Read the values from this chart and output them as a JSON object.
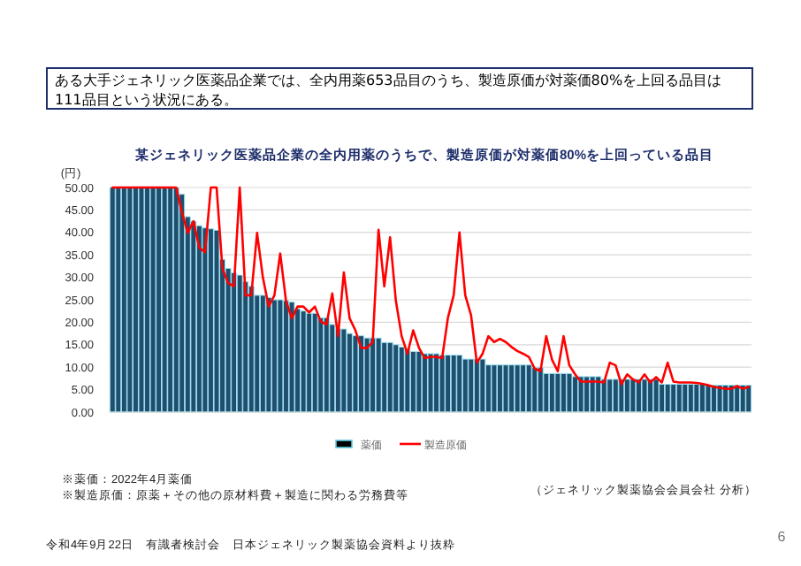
{
  "chart_data": {
    "type": "bar",
    "title": "某ジェネリック医薬品企業の全内用薬のうちで、製造原価が対薬価80%を上回っている品目",
    "ylabel": "(円)",
    "categories": [
      null,
      null,
      null,
      null,
      null,
      null,
      null,
      null,
      null,
      null,
      null,
      null,
      null,
      null,
      null,
      null,
      null,
      null,
      null,
      null,
      null,
      null,
      null,
      null,
      null,
      null,
      null,
      null,
      null,
      null,
      null,
      null,
      null,
      null,
      null,
      null,
      null,
      null,
      null,
      null,
      null,
      null,
      null,
      null,
      null,
      null,
      null,
      null,
      null,
      null,
      null,
      null,
      null,
      null,
      null,
      null,
      null,
      null,
      null,
      null,
      null,
      null,
      null,
      null,
      null,
      null,
      null,
      null,
      null,
      null,
      null,
      null,
      null,
      null,
      null,
      null,
      null,
      null,
      null,
      null,
      null,
      null,
      null,
      null,
      null,
      null,
      null,
      null,
      null,
      null,
      null,
      null,
      null,
      null,
      null,
      null,
      null,
      null,
      null,
      null,
      null,
      null,
      null,
      null,
      null,
      null,
      null,
      null,
      null,
      null,
      null
    ],
    "series": [
      {
        "name": "薬価",
        "color": "#1f4e6e",
        "values": [
          50,
          50,
          50,
          50,
          50,
          50,
          50,
          50,
          50,
          50,
          50,
          50,
          48.5,
          43.5,
          42.5,
          41.5,
          41,
          40.8,
          40.5,
          34,
          32,
          31,
          30.5,
          29,
          28,
          26,
          26,
          25.5,
          25,
          25,
          24.8,
          24.5,
          23,
          22.5,
          22,
          22,
          21,
          21,
          19.5,
          18.5,
          18.5,
          17.5,
          17,
          17,
          16.5,
          16.5,
          16.5,
          15.5,
          15.5,
          15,
          14.5,
          14,
          13.5,
          13.5,
          13,
          13,
          13,
          12.7,
          12.7,
          12.7,
          12.7,
          11.8,
          11.8,
          11.8,
          11.8,
          10.5,
          10.5,
          10.5,
          10.5,
          10.5,
          10.5,
          10.5,
          10.5,
          9.9,
          9.9,
          8.6,
          8.6,
          8.6,
          8.6,
          8.6,
          7.9,
          7.9,
          7.9,
          7.9,
          7.9,
          7.3,
          7.3,
          7.3,
          7.3,
          7.3,
          7.3,
          7.3,
          7.3,
          7.3,
          7.3,
          6.2,
          6.2,
          6.2,
          6.2,
          6.2,
          6.2,
          6.2,
          6.2,
          6,
          6,
          6,
          6,
          6,
          6,
          6,
          6
        ]
      },
      {
        "name": "製造原価",
        "type": "line",
        "color": "#ff0000",
        "values": [
          50,
          50,
          50,
          50,
          50,
          50,
          50,
          50,
          50,
          50,
          50,
          50,
          44.5,
          39.9,
          42.5,
          36.6,
          35.6,
          50,
          50,
          32,
          28.7,
          28,
          50,
          26,
          26,
          39.9,
          30,
          23.5,
          26,
          35.3,
          24.8,
          20.9,
          23.5,
          23.5,
          22.2,
          23.5,
          20.2,
          19.5,
          26.4,
          16.9,
          31.1,
          20.9,
          18.2,
          14.3,
          14.3,
          15.6,
          40.6,
          28,
          38.9,
          24.8,
          16.9,
          13,
          18.2,
          14.3,
          12,
          12.3,
          12.3,
          12,
          21,
          26,
          40,
          26,
          21.6,
          11,
          13,
          16.9,
          15.6,
          16.3,
          15.6,
          14.5,
          13.6,
          13,
          12.3,
          9.7,
          9.1,
          16.9,
          11.7,
          9.1,
          16.9,
          10.4,
          8.4,
          6.8,
          6.8,
          6.8,
          6.8,
          6.6,
          11,
          10.4,
          6.2,
          8.4,
          7.3,
          6.6,
          8.4,
          6.6,
          7.8,
          6.6,
          11,
          6.8,
          6.6,
          6.6,
          6.6,
          6.5,
          6.3,
          6,
          5.6,
          5.4,
          5.2,
          5.2,
          5.8,
          5.2,
          5.6
        ]
      }
    ],
    "ylim": [
      0,
      50
    ],
    "yticks": [
      {
        "value": 0,
        "label": "0.00"
      },
      {
        "value": 5,
        "label": "5.00"
      },
      {
        "value": 10,
        "label": "10.00"
      },
      {
        "value": 15,
        "label": "15.00"
      },
      {
        "value": 20,
        "label": "20.00"
      },
      {
        "value": 25,
        "label": "25.00"
      },
      {
        "value": 30,
        "label": "30.00"
      },
      {
        "value": 35,
        "label": "35.00"
      },
      {
        "value": 40,
        "label": "40.00"
      },
      {
        "value": 45,
        "label": "45.00"
      },
      {
        "value": 50,
        "label": "50.00"
      }
    ],
    "grid": "y",
    "legend": "bottom",
    "line_style": "solid",
    "marker": "none",
    "annotations": [
      "ある大手ジェネリック医薬品企業では、全内用薬653品目のうち、製造原価が対薬価80%を上回る品目は111品目という状況にある。",
      "※薬価：2022年4月薬価",
      "※製造原価：原薬＋その他の原材料費＋製造に関わる労務費等",
      "（ジェネリック製薬協会会員会社 分析）",
      "令和4年9月22日　有識者検討会　日本ジェネリック製薬協会資料より抜粋",
      "6"
    ]
  }
}
